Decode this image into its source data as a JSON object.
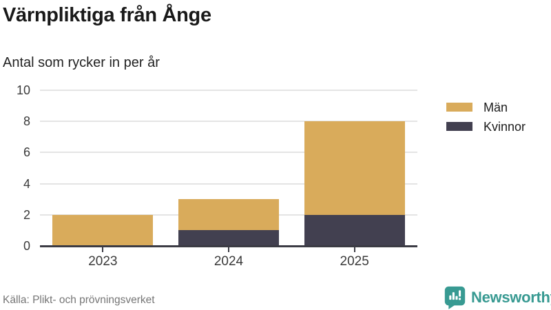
{
  "header": {
    "title": "Värnpliktiga från Ånge",
    "subtitle": "Antal som rycker in per år"
  },
  "chart_data": {
    "type": "bar",
    "stacked": true,
    "categories": [
      "2023",
      "2024",
      "2025"
    ],
    "series": [
      {
        "name": "Män",
        "color": "#d9ab5b",
        "values": [
          2,
          2,
          6
        ]
      },
      {
        "name": "Kvinnor",
        "color": "#424050",
        "values": [
          0,
          1,
          2
        ]
      }
    ],
    "stack_bottom_to_top": [
      "Kvinnor",
      "Män"
    ],
    "totals": [
      2,
      3,
      8
    ],
    "ylim": [
      0,
      10
    ],
    "yticks": [
      0,
      2,
      4,
      6,
      8,
      10
    ],
    "grid": "horizontal",
    "legend_position": "right-top"
  },
  "colors": {
    "men": "#d9ab5b",
    "women": "#424050",
    "axis_line": "#3b3b44",
    "gridline": "#e4e4e4",
    "brand_teal": "#389a92",
    "source_text": "#757575"
  },
  "footer": {
    "source": "Källa: Plikt- och prövningsverket",
    "brand": "Newsworthy",
    "brand_icon": "newsworthy-bar-chart-bubble-icon"
  }
}
